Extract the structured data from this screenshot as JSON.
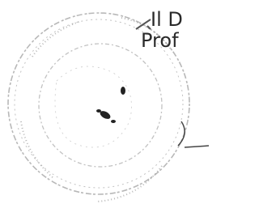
{
  "document": {
    "text_lines": [
      "Il D",
      "Prof"
    ]
  }
}
